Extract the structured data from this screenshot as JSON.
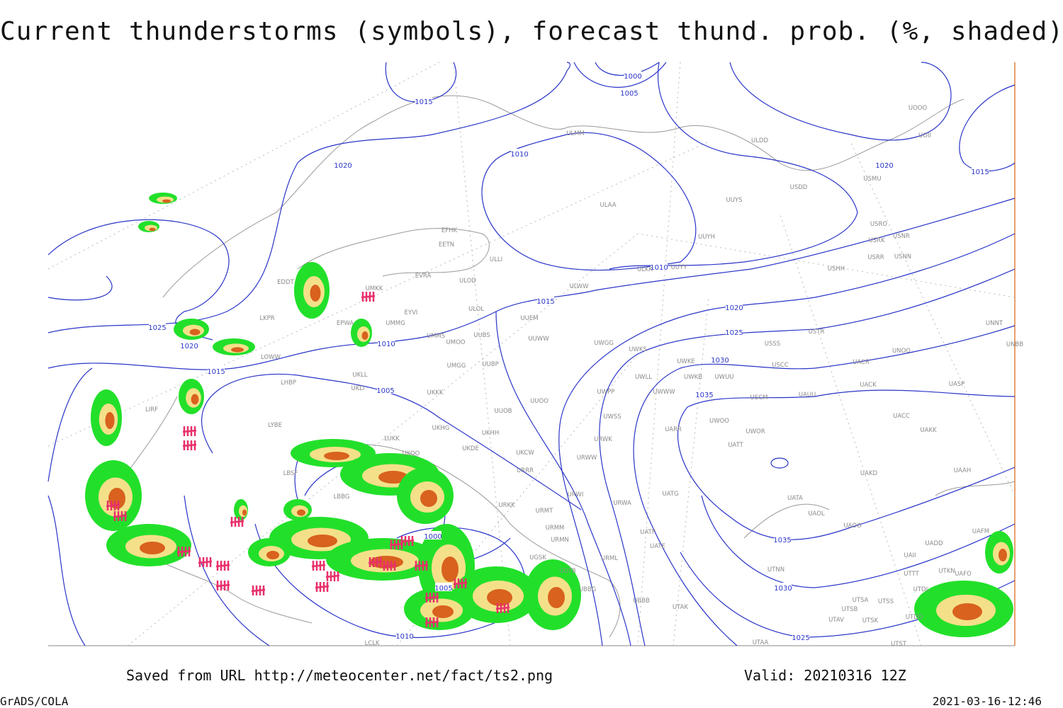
{
  "header": {
    "title": "Current thunderstorms (symbols), forecast thund. prob. (%, shaded)"
  },
  "isobars": [
    "1015",
    "1000",
    "1005",
    "1020",
    "1010",
    "1020",
    "1015",
    "1010",
    "1015",
    "1020",
    "1025",
    "1025",
    "1020",
    "1010",
    "1015",
    "1030",
    "1005",
    "1035",
    "1000",
    "1005",
    "1035",
    "1030",
    "1025",
    "1010"
  ],
  "stations": [
    "ULMM",
    "ULDD",
    "UOOO",
    "UOII",
    "ULAA",
    "UUYS",
    "USDD",
    "USMU",
    "EFHK",
    "EETN",
    "UUYH",
    "USRO",
    "USRK",
    "USNR",
    "ULLI",
    "USRR",
    "USNN",
    "UUYY",
    "ULKK",
    "EVRA",
    "ULOD",
    "USHH",
    "EDDT",
    "ULWW",
    "UMKK",
    "EYVI",
    "ULOL",
    "UUEM",
    "LKPR",
    "EPWA",
    "UMMG",
    "UMMS",
    "UUBS",
    "UUWW",
    "UMOO",
    "USTR",
    "UNNT",
    "UNBB",
    "UMGG",
    "UUBP",
    "LOWW",
    "UWGG",
    "UWKS",
    "USSS",
    "UNOO",
    "UKLL",
    "UWKE",
    "USCC",
    "UACR",
    "LHBP",
    "UWLL",
    "UWKB",
    "UWUU",
    "UKLI",
    "UKKK",
    "UWPP",
    "UWWW",
    "USCM",
    "UAUU",
    "UACK",
    "UASP",
    "UUOO",
    "UUOB",
    "UWSS",
    "UACC",
    "LIRF",
    "LYBE",
    "UKHG",
    "UKHH",
    "UARR",
    "UWOO",
    "UWOR",
    "UAKK",
    "LUKK",
    "UKOO",
    "UKDE",
    "UKCW",
    "URWK",
    "URWW",
    "UATT",
    "LBSF",
    "URRR",
    "UAKD",
    "UAAH",
    "LBBG",
    "URKK",
    "URWI",
    "URWA",
    "UATG",
    "UATA",
    "UAOL",
    "URMT",
    "UAOO",
    "UAFM",
    "URMM",
    "URMN",
    "UATP",
    "UATE",
    "UADD",
    "UGSK",
    "URML",
    "UAII",
    "UGTB",
    "UTTT",
    "UTKN",
    "UAFO",
    "UTNN",
    "UBBG",
    "UTDL",
    "UTAK",
    "UBBB",
    "UTSA",
    "UTSS",
    "UTSB",
    "UTAV",
    "UTSK",
    "UTDD",
    "UTAA",
    "UTST",
    "LCLK"
  ],
  "footer": {
    "saved": "Saved from URL http://meteocenter.net/fact/ts2.png",
    "valid": "Valid: 20210316 12Z",
    "software": "GrADS/COLA",
    "timestamp": "2021-03-16-12:46"
  }
}
